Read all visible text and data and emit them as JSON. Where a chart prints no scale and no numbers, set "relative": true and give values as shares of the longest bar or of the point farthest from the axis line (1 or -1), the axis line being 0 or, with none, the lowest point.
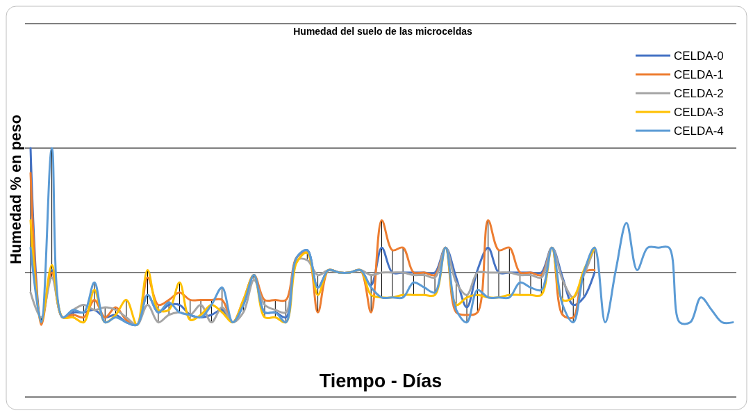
{
  "chart_data": {
    "type": "line",
    "title": "Humedad del suelo de las microceldas",
    "xlabel": "Tiempo - Días",
    "ylabel": "Humedad % en peso",
    "relative": true,
    "legend": "top right",
    "ref_lines": [
      {
        "axis": "y",
        "value": 0.5,
        "color": "#000000"
      },
      {
        "axis": "y",
        "value": 1.0,
        "color": "#000000"
      }
    ],
    "categories": [
      null,
      null,
      null,
      null,
      null,
      null,
      null,
      null,
      null,
      null,
      null,
      null,
      null,
      null,
      null,
      null,
      null,
      null,
      null,
      null,
      null,
      null,
      null,
      null,
      null,
      null,
      null,
      null,
      null,
      null,
      null,
      null,
      null,
      null,
      null,
      null,
      null,
      null,
      null,
      null,
      null,
      null,
      null,
      null,
      null,
      null,
      null,
      null,
      null,
      null,
      null,
      null,
      null,
      null,
      null,
      null,
      null,
      null,
      null,
      null,
      null,
      null,
      null,
      null,
      null,
      null,
      null
    ],
    "series": [
      {
        "name": "CELDA-0",
        "color": "#4472c4",
        "values": [
          1.0,
          0.3,
          0.51,
          0.32,
          0.34,
          0.34,
          0.35,
          0.32,
          0.33,
          0.3,
          0.29,
          0.41,
          0.34,
          0.37,
          0.37,
          0.33,
          0.32,
          0.33,
          0.35,
          0.3,
          0.37,
          0.49,
          0.34,
          0.34,
          0.32,
          0.56,
          0.59,
          0.44,
          0.51,
          0.5,
          0.5,
          0.51,
          0.45,
          0.6,
          0.5,
          0.5,
          0.5,
          0.5,
          0.5,
          0.6,
          0.48,
          0.36,
          0.51,
          0.6,
          0.5,
          0.5,
          0.5,
          0.5,
          0.5,
          0.6,
          0.48,
          0.37,
          0.4,
          0.5,
          null,
          null,
          null,
          null,
          null,
          null,
          null,
          null,
          null,
          null,
          null,
          null,
          null
        ]
      },
      {
        "name": "CELDA-1",
        "color": "#ed7d31",
        "values": [
          0.9,
          0.29,
          0.5,
          0.32,
          0.33,
          0.32,
          0.39,
          0.32,
          0.36,
          0.31,
          0.29,
          0.48,
          0.37,
          0.39,
          0.42,
          0.39,
          0.39,
          0.39,
          0.39,
          0.3,
          0.39,
          0.49,
          0.39,
          0.39,
          0.39,
          0.56,
          0.58,
          0.34,
          0.51,
          0.5,
          0.5,
          0.51,
          0.34,
          0.71,
          0.59,
          0.6,
          0.5,
          0.5,
          0.49,
          0.6,
          0.34,
          0.33,
          0.34,
          0.71,
          0.59,
          0.6,
          0.5,
          0.5,
          0.49,
          0.6,
          0.33,
          0.32,
          0.5,
          0.51,
          null,
          null,
          null,
          null,
          null,
          null,
          null,
          null,
          null,
          null,
          null,
          null,
          null
        ]
      },
      {
        "name": "CELDA-2",
        "color": "#a5a5a5",
        "values": [
          0.42,
          0.32,
          0.48,
          0.32,
          0.35,
          0.37,
          0.35,
          0.36,
          0.35,
          0.32,
          0.29,
          0.37,
          0.3,
          0.33,
          0.34,
          0.33,
          0.37,
          0.3,
          0.36,
          0.3,
          0.34,
          0.47,
          0.37,
          0.35,
          0.34,
          0.55,
          0.55,
          0.49,
          0.51,
          0.5,
          0.5,
          0.51,
          0.49,
          0.5,
          0.5,
          0.5,
          0.49,
          0.49,
          0.48,
          0.6,
          0.46,
          0.41,
          0.5,
          0.5,
          0.5,
          0.5,
          0.49,
          0.49,
          0.48,
          0.6,
          0.47,
          0.4,
          0.49,
          0.6,
          null,
          null,
          null,
          null,
          null,
          null,
          null,
          null,
          null,
          null,
          null,
          null,
          null
        ]
      },
      {
        "name": "CELDA-3",
        "color": "#ffc000",
        "values": [
          0.71,
          0.3,
          0.53,
          0.32,
          0.32,
          0.3,
          0.43,
          0.3,
          0.33,
          0.39,
          0.29,
          0.51,
          0.35,
          0.35,
          0.46,
          0.31,
          0.33,
          0.37,
          0.34,
          0.3,
          0.39,
          0.49,
          0.32,
          0.32,
          0.3,
          0.54,
          0.58,
          0.41,
          0.51,
          0.5,
          0.5,
          0.51,
          0.41,
          0.4,
          0.4,
          0.41,
          0.41,
          0.41,
          0.41,
          0.6,
          0.37,
          0.4,
          0.41,
          0.4,
          0.4,
          0.41,
          0.41,
          0.41,
          0.41,
          0.6,
          0.39,
          0.4,
          0.51,
          0.6,
          null,
          null,
          null,
          null,
          null,
          null,
          null,
          null,
          null,
          null,
          null,
          null,
          null
        ]
      },
      {
        "name": "CELDA-4",
        "color": "#5b9bd5",
        "values": [
          0.6,
          0.3,
          1.0,
          0.32,
          0.35,
          0.34,
          0.46,
          0.3,
          0.32,
          0.3,
          0.29,
          0.41,
          0.34,
          0.38,
          0.34,
          0.33,
          0.32,
          0.37,
          0.44,
          0.3,
          0.37,
          0.49,
          0.34,
          0.34,
          0.3,
          0.56,
          0.59,
          0.44,
          0.51,
          0.5,
          0.5,
          0.51,
          0.44,
          0.4,
          0.4,
          0.4,
          0.46,
          0.44,
          0.42,
          0.6,
          0.35,
          0.3,
          0.43,
          0.4,
          0.4,
          0.4,
          0.46,
          0.44,
          0.43,
          0.6,
          0.37,
          0.3,
          0.5,
          0.6,
          0.3,
          0.51,
          0.7,
          0.51,
          0.6,
          0.6,
          0.6,
          0.3,
          0.3,
          0.4,
          0.35,
          0.3,
          0.3
        ]
      }
    ]
  }
}
